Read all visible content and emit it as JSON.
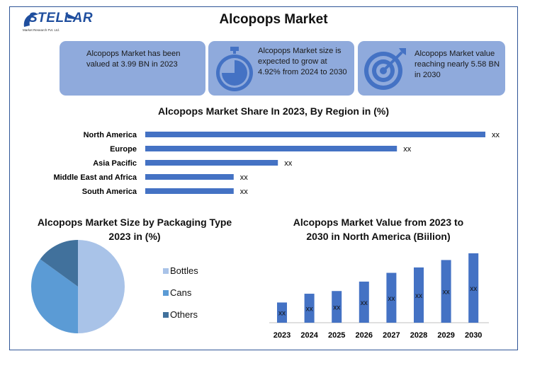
{
  "brand": {
    "name": "STELLAR",
    "tagline": "Market Research Pvt. Ltd."
  },
  "title": "Alcopops Market",
  "cards": [
    {
      "text": "Alcopops Market has been valued at 3.99 BN in 2023",
      "icon": "info-card",
      "color": "#8faadc"
    },
    {
      "text": "Alcopops Market size is expected to grow at 4.92% from 2024 to 2030",
      "icon": "stopwatch-icon",
      "color": "#8faadc"
    },
    {
      "text": "Alcopops Market value reaching nearly 5.58 BN in 2030",
      "icon": "target-icon",
      "color": "#8faadc"
    }
  ],
  "colors": {
    "accent": "#4472c4",
    "card": "#8faadc",
    "pie_light": "#a9c3e8",
    "pie_mid": "#5b9bd5",
    "pie_dark": "#41719c"
  },
  "chart_data": [
    {
      "type": "bar",
      "orientation": "horizontal",
      "title": "Alcopops Market Share In 2023, By Region in (%)",
      "categories": [
        "North America",
        "Europe",
        "Asia Pacific",
        "Middle East and Africa",
        "South America"
      ],
      "values": [
        100,
        74,
        39,
        26,
        26
      ],
      "data_labels": [
        "xx",
        "xx",
        "xx",
        "xx",
        "xx"
      ],
      "xlim": [
        0,
        100
      ]
    },
    {
      "type": "pie",
      "title": "Alcopops Market Size by Packaging Type 2023 in (%)",
      "categories": [
        "Bottles",
        "Cans",
        "Others"
      ],
      "values": [
        50,
        35,
        15
      ],
      "legend": "right"
    },
    {
      "type": "bar",
      "title": "Alcopops Market Value from 2023 to 2030 in North America (Biilion)",
      "categories": [
        "2023",
        "2024",
        "2025",
        "2026",
        "2027",
        "2028",
        "2029",
        "2030"
      ],
      "values": [
        30,
        43,
        47,
        61,
        74,
        82,
        93,
        103
      ],
      "data_labels": [
        "xx",
        "xx",
        "xx",
        "xx",
        "xx",
        "xx",
        "xx",
        "xx"
      ],
      "ylim": [
        0,
        105
      ]
    }
  ]
}
